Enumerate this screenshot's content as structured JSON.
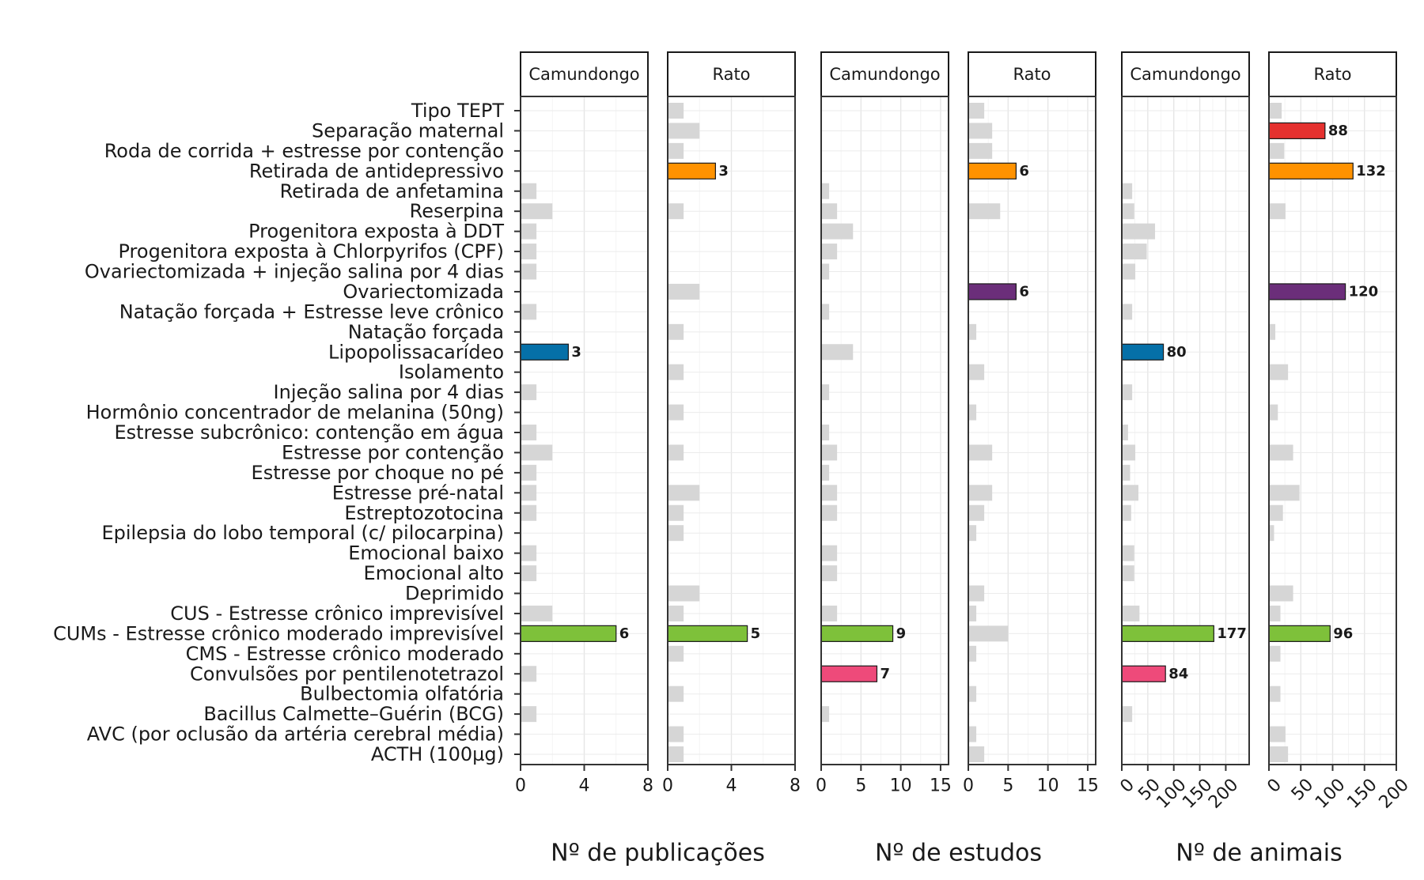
{
  "chart_data": {
    "type": "bar",
    "orientation": "horizontal",
    "categories": [
      "Tipo TEPT",
      "Separação maternal",
      "Roda de corrida + estresse por contenção",
      "Retirada de antidepressivo",
      "Retirada de anfetamina",
      "Reserpina",
      "Progenitora exposta à DDT",
      "Progenitora exposta à Chlorpyrifos (CPF)",
      "Ovariectomizada + injeção salina por 4 dias",
      "Ovariectomizada",
      "Natação forçada + Estresse leve crônico",
      "Natação forçada",
      "Lipopolissacarídeo",
      "Isolamento",
      "Injeção salina por 4 dias",
      "Hormônio concentrador de melanina (50ng)",
      "Estresse subcrônico: contenção em água",
      "Estresse por contenção",
      "Estresse por choque no pé",
      "Estresse pré-natal",
      "Estreptozotocina",
      "Epilepsia do lobo temporal (c/ pilocarpina)",
      "Emocional baixo",
      "Emocional alto",
      "Deprimido",
      "CUS - Estresse crônico imprevisível",
      "CUMs - Estresse crônico moderado imprevisível",
      "CMS - Estresse crônico moderado",
      "Convulsões por pentilenotetrazol",
      "Bulbectomia olfatória",
      "Bacillus Calmette–Guérin (BCG)",
      "AVC (por oclusão da artéria cerebral média)",
      "ACTH (100µg)"
    ],
    "colors": {
      "default": "#d6d6d6",
      "Separação maternal": "#e5312f",
      "Retirada de antidepressivo": "#ff9200",
      "Ovariectomizada": "#6b2e7a",
      "Lipopolissacarídeo": "#0570a8",
      "CUMs - Estresse crônico moderado imprevisível": "#7ec13a",
      "Convulsões por pentilenotetrazol": "#ee4a7a"
    },
    "panels": [
      {
        "strip": "Camundongo",
        "xlim": [
          0,
          8
        ],
        "ticks": [
          0,
          4,
          8
        ],
        "rotate_ticks": false,
        "values": [
          0,
          0,
          0,
          0,
          1,
          2,
          1,
          1,
          1,
          0,
          1,
          0,
          3,
          0,
          1,
          0,
          1,
          2,
          1,
          1,
          1,
          0,
          1,
          1,
          0,
          2,
          6,
          0,
          1,
          0,
          1,
          0,
          0
        ],
        "labels": {
          "Lipopolissacarídeo": "3",
          "CUMs - Estresse crônico moderado imprevisível": "6"
        }
      },
      {
        "strip": "Rato",
        "xlim": [
          0,
          8
        ],
        "ticks": [
          0,
          4,
          8
        ],
        "rotate_ticks": false,
        "values": [
          1,
          2,
          1,
          3,
          0,
          1,
          0,
          0,
          0,
          2,
          0,
          1,
          0,
          1,
          0,
          1,
          0,
          1,
          0,
          2,
          1,
          1,
          0,
          0,
          2,
          1,
          5,
          1,
          0,
          1,
          0,
          1,
          1
        ],
        "labels": {
          "Retirada de antidepressivo": "3",
          "CUMs - Estresse crônico moderado imprevisível": "5"
        }
      },
      {
        "strip": "Camundongo",
        "xlim": [
          0,
          16
        ],
        "ticks": [
          0,
          5,
          10,
          15
        ],
        "rotate_ticks": false,
        "values": [
          0,
          0,
          0,
          0,
          1,
          2,
          4,
          2,
          1,
          0,
          1,
          0,
          4,
          0,
          1,
          0,
          1,
          2,
          1,
          2,
          2,
          0,
          2,
          2,
          0,
          2,
          9,
          0,
          7,
          0,
          1,
          0,
          0
        ],
        "labels": {
          "CUMs - Estresse crônico moderado imprevisível": "9",
          "Convulsões por pentilenotetrazol": "7"
        }
      },
      {
        "strip": "Rato",
        "xlim": [
          0,
          16
        ],
        "ticks": [
          0,
          5,
          10,
          15
        ],
        "rotate_ticks": false,
        "values": [
          2,
          3,
          3,
          6,
          0,
          4,
          0,
          0,
          0,
          6,
          0,
          1,
          0,
          2,
          0,
          1,
          0,
          3,
          0,
          3,
          2,
          1,
          0,
          0,
          2,
          1,
          5,
          1,
          0,
          1,
          0,
          1,
          2
        ],
        "labels": {
          "Retirada de antidepressivo": "6",
          "Ovariectomizada": "6"
        }
      },
      {
        "strip": "Camundongo",
        "xlim": [
          0,
          245
        ],
        "ticks": [
          0,
          50,
          100,
          150,
          200
        ],
        "rotate_ticks": true,
        "values": [
          0,
          0,
          0,
          0,
          20,
          24,
          64,
          48,
          26,
          0,
          20,
          0,
          80,
          0,
          20,
          0,
          12,
          26,
          16,
          32,
          18,
          0,
          24,
          24,
          0,
          34,
          177,
          0,
          84,
          0,
          20,
          0,
          0
        ],
        "labels": {
          "Lipopolissacarídeo": "80",
          "CUMs - Estresse crônico moderado imprevisível": "177",
          "Convulsões por pentilenotetrazol": "84"
        }
      },
      {
        "strip": "Rato",
        "xlim": [
          0,
          200
        ],
        "ticks": [
          0,
          50,
          100,
          150,
          200
        ],
        "rotate_ticks": true,
        "values": [
          20,
          88,
          24,
          132,
          0,
          26,
          0,
          0,
          0,
          120,
          0,
          10,
          0,
          30,
          0,
          14,
          0,
          38,
          0,
          48,
          22,
          8,
          0,
          0,
          38,
          18,
          96,
          18,
          0,
          18,
          0,
          26,
          30
        ],
        "labels": {
          "Separação maternal": "88",
          "Retirada de antidepressivo": "132",
          "Ovariectomizada": "120",
          "CUMs - Estresse crônico moderado imprevisível": "96"
        }
      }
    ],
    "xlabels": [
      "Nº de publicações",
      "Nº de estudos",
      "Nº de animais"
    ],
    "grid": true
  }
}
